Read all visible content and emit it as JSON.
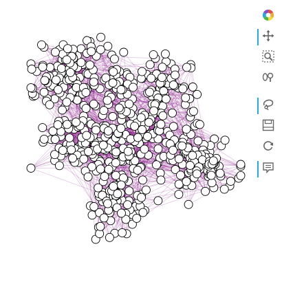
{
  "toolbar": {
    "logo": "bokeh-logo-icon",
    "tools": [
      {
        "name": "pan-tool",
        "icon": "move-arrows-icon",
        "active": true
      },
      {
        "name": "box-zoom-tool",
        "icon": "box-zoom-icon",
        "active": false
      },
      {
        "name": "wheel-zoom-tool",
        "icon": "wheel-zoom-icon",
        "active": false
      },
      {
        "name": "lasso-tool",
        "icon": "lasso-icon",
        "active": true
      },
      {
        "name": "save-tool",
        "icon": "save-icon",
        "active": false
      },
      {
        "name": "reset-tool",
        "icon": "reset-icon",
        "active": false
      },
      {
        "name": "hover-tool",
        "icon": "hover-icon",
        "active": true
      }
    ],
    "accent_color": "#26aae1"
  },
  "graph": {
    "node_fill": "#ffffff",
    "node_stroke": "#000000",
    "edge_color": "#800080",
    "node_count": 620,
    "description_visible": false
  }
}
